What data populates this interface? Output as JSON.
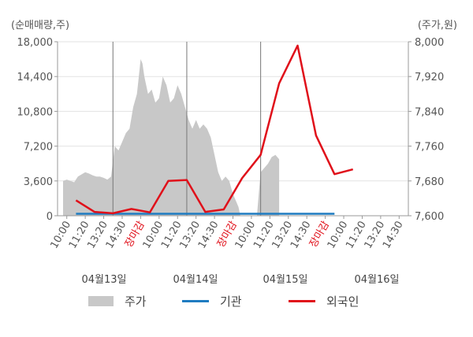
{
  "chart_data": {
    "type": "line",
    "left_axis_unit": "(순매매량,주)",
    "right_axis_unit": "(주가,원)",
    "left_ticks": [
      "18,000",
      "14,400",
      "10,800",
      "7,200",
      "3,600",
      "0"
    ],
    "left_tick_values": [
      18000,
      14400,
      10800,
      7200,
      3600,
      0
    ],
    "left_ylim": [
      0,
      18000
    ],
    "right_ticks": [
      "8,000",
      "7,920",
      "7,840",
      "7,760",
      "7,680",
      "7,600"
    ],
    "right_tick_values": [
      8000,
      7920,
      7840,
      7760,
      7680,
      7600
    ],
    "right_ylim": [
      7600,
      8000
    ],
    "x_labels": [
      "10:00",
      "11:20",
      "13:20",
      "14:30",
      "장마감",
      "10:00",
      "11:20",
      "13:20",
      "14:30",
      "장마감",
      "10:00",
      "11:20",
      "13:20",
      "14:30",
      "장마감",
      "10:00",
      "11:20",
      "13:20",
      "14:30"
    ],
    "x_label_red": [
      false,
      false,
      false,
      false,
      true,
      false,
      false,
      false,
      false,
      true,
      false,
      false,
      false,
      false,
      true,
      false,
      false,
      false,
      false
    ],
    "dates": [
      "04월13일",
      "04월14일",
      "04월15일",
      "04월16일"
    ],
    "day_separator_index": [
      2.5,
      6.5,
      10.5
    ],
    "series": [
      {
        "name": "주가",
        "kind": "area",
        "axis": "right",
        "color": "#c8c8c8",
        "points": [
          [
            -0.2,
            7680
          ],
          [
            0,
            7683
          ],
          [
            0.2,
            7680
          ],
          [
            0.4,
            7677
          ],
          [
            0.6,
            7690
          ],
          [
            0.8,
            7695
          ],
          [
            1.0,
            7700
          ],
          [
            1.2,
            7697
          ],
          [
            1.4,
            7693
          ],
          [
            1.6,
            7690
          ],
          [
            1.8,
            7690
          ],
          [
            2.0,
            7687
          ],
          [
            2.2,
            7683
          ],
          [
            2.4,
            7690
          ],
          [
            2.6,
            7760
          ],
          [
            2.8,
            7750
          ],
          [
            3.0,
            7770
          ],
          [
            3.2,
            7790
          ],
          [
            3.4,
            7800
          ],
          [
            3.6,
            7850
          ],
          [
            3.8,
            7880
          ],
          [
            3.9,
            7920
          ],
          [
            4.0,
            7960
          ],
          [
            4.1,
            7950
          ],
          [
            4.2,
            7920
          ],
          [
            4.4,
            7880
          ],
          [
            4.6,
            7890
          ],
          [
            4.8,
            7860
          ],
          [
            5.0,
            7870
          ],
          [
            5.2,
            7920
          ],
          [
            5.4,
            7900
          ],
          [
            5.6,
            7860
          ],
          [
            5.8,
            7870
          ],
          [
            6.0,
            7900
          ],
          [
            6.2,
            7880
          ],
          [
            6.4,
            7850
          ],
          [
            6.6,
            7820
          ],
          [
            6.8,
            7800
          ],
          [
            7.0,
            7820
          ],
          [
            7.2,
            7800
          ],
          [
            7.4,
            7810
          ],
          [
            7.6,
            7800
          ],
          [
            7.8,
            7780
          ],
          [
            8.0,
            7740
          ],
          [
            8.2,
            7700
          ],
          [
            8.4,
            7680
          ],
          [
            8.6,
            7690
          ],
          [
            8.8,
            7680
          ],
          [
            9.0,
            7650
          ],
          [
            9.2,
            7630
          ],
          [
            9.3,
            7620
          ],
          [
            9.4,
            7600
          ],
          [
            9.6,
            7600
          ],
          [
            10.0,
            7600
          ],
          [
            10.3,
            7600
          ],
          [
            10.5,
            7700
          ],
          [
            10.7,
            7710
          ],
          [
            10.9,
            7720
          ],
          [
            11.1,
            7735
          ],
          [
            11.3,
            7740
          ],
          [
            11.5,
            7730
          ],
          [
            11.5,
            7600
          ]
        ]
      },
      {
        "name": "기관",
        "kind": "line",
        "axis": "left",
        "color": "#1f7cc1",
        "points": [
          [
            0.5,
            200
          ],
          [
            3,
            200
          ],
          [
            6,
            200
          ],
          [
            9,
            200
          ],
          [
            12,
            200
          ],
          [
            14.5,
            200
          ]
        ]
      },
      {
        "name": "외국인",
        "kind": "line",
        "axis": "left",
        "color": "#e0101a",
        "points": [
          [
            0.5,
            1600
          ],
          [
            1.5,
            400
          ],
          [
            2.5,
            250
          ],
          [
            3.5,
            700
          ],
          [
            4.5,
            350
          ],
          [
            5.5,
            3600
          ],
          [
            6.5,
            3700
          ],
          [
            7.5,
            400
          ],
          [
            8.5,
            650
          ],
          [
            9.5,
            3900
          ],
          [
            10.5,
            6300
          ],
          [
            11.5,
            13700
          ],
          [
            12.5,
            17600
          ],
          [
            13.5,
            8300
          ],
          [
            14.5,
            4300
          ],
          [
            15.5,
            4800
          ]
        ]
      }
    ],
    "legend": [
      "주가",
      "기관",
      "외국인"
    ],
    "grid": true,
    "legend_position": "bottom"
  }
}
